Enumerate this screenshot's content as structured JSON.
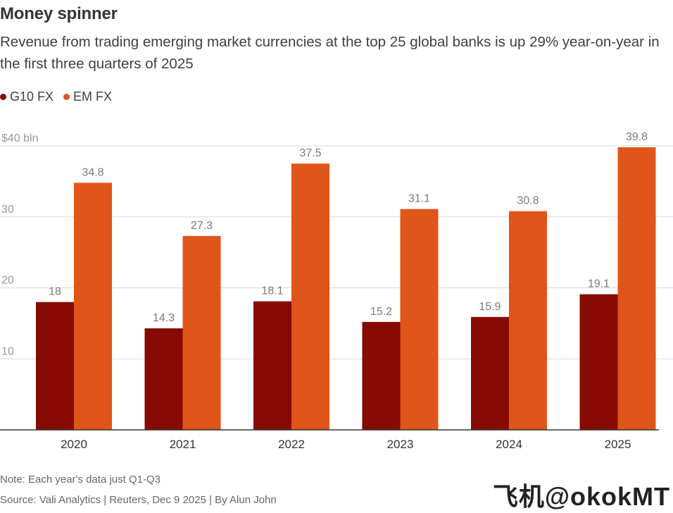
{
  "title": "Money spinner",
  "subtitle": "Revenue from trading emerging market currencies at the top 25 global banks is up 29% year-on-year in the first three quarters of 2025",
  "note": "Note: Each year's data just Q1-Q3",
  "source": "Source: Vali Analytics | Reuters, Dec 9 2025 | By Alun John",
  "watermark": "飞机@okokMT",
  "colors": {
    "g10": "#870a03",
    "em": "#e0551a",
    "grid": "#d9d9d9",
    "axis": "#333333"
  },
  "chart_data": {
    "type": "bar",
    "title": "Money spinner",
    "xlabel": "",
    "ylabel": "",
    "categories": [
      "2020",
      "2021",
      "2022",
      "2023",
      "2024",
      "2025"
    ],
    "series": [
      {
        "name": "G10 FX",
        "values": [
          18,
          14.3,
          18.1,
          15.2,
          15.9,
          19.1
        ],
        "labels": [
          "18",
          "14.3",
          "18.1",
          "15.2",
          "15.9",
          "19.1"
        ]
      },
      {
        "name": "EM FX",
        "values": [
          34.8,
          27.3,
          37.5,
          31.1,
          30.8,
          39.8
        ],
        "labels": [
          "34.8",
          "27.3",
          "37.5",
          "31.1",
          "30.8",
          "39.8"
        ]
      }
    ],
    "ylim": [
      0,
      40
    ],
    "yticks": [
      10,
      20,
      30,
      40
    ],
    "ytick_labels": [
      "10",
      "20",
      "30",
      "$40 bln"
    ],
    "grid": true,
    "legend": "top-left"
  }
}
